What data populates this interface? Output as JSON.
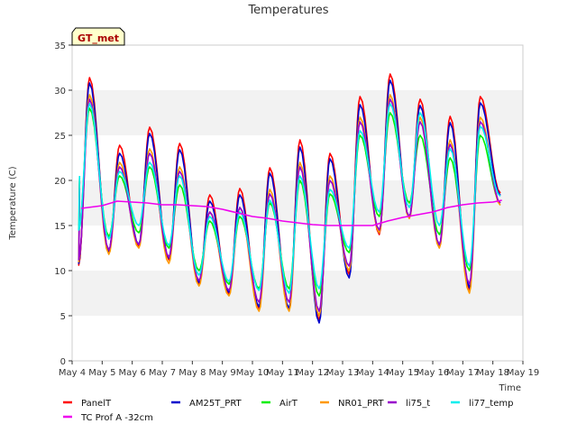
{
  "chart_data": {
    "type": "line",
    "title": "Temperatures",
    "xlabel": "Time",
    "ylabel": "Temperature (C)",
    "ylim": [
      0,
      35
    ],
    "yticks": [
      0,
      5,
      10,
      15,
      20,
      25,
      30,
      35
    ],
    "xlim": [
      4,
      19
    ],
    "xtick_values": [
      4,
      5,
      6,
      7,
      8,
      9,
      10,
      11,
      12,
      13,
      14,
      15,
      16,
      17,
      18,
      19
    ],
    "xtick_labels": [
      "May 4",
      "May 5",
      "May 6",
      "May 7",
      "May 8",
      "May 9",
      "May 10",
      "May 11",
      "May 12",
      "May 13",
      "May 14",
      "May 15",
      "May 16",
      "May 17",
      "May 18",
      "May 19"
    ],
    "grid": "horizontal alternating bands",
    "legend_position": "bottom",
    "site_badge": "GT_met",
    "series": [
      {
        "name": "PanelT",
        "color": "#ff0000",
        "max": [
          31.4,
          23.9,
          25.9,
          24.1,
          18.4,
          19.1,
          21.4,
          24.5,
          23.0,
          29.3,
          31.8,
          29.0,
          27.1,
          29.3
        ],
        "min": [
          10.6,
          12.0,
          12.7,
          11.2,
          8.5,
          7.4,
          5.8,
          5.6,
          4.5,
          9.6,
          14.0,
          15.8,
          12.6,
          7.9
        ]
      },
      {
        "name": "AM25T_PRT",
        "color": "#0000cc",
        "max": [
          30.8,
          23.0,
          25.2,
          23.4,
          17.7,
          18.4,
          20.8,
          23.7,
          22.4,
          28.4,
          31.1,
          28.3,
          26.4,
          28.6
        ],
        "min": [
          10.8,
          12.2,
          12.9,
          11.4,
          8.7,
          7.6,
          6.0,
          5.8,
          4.2,
          9.2,
          14.2,
          15.9,
          12.8,
          8.1
        ]
      },
      {
        "name": "AirT",
        "color": "#00ee00",
        "max": [
          28.0,
          20.5,
          21.5,
          19.5,
          15.5,
          16.0,
          17.5,
          20.0,
          18.5,
          25.0,
          27.5,
          25.0,
          22.5,
          25.0
        ],
        "min": [
          14.5,
          13.8,
          14.2,
          12.5,
          10.0,
          8.5,
          8.0,
          8.0,
          7.2,
          12.0,
          16.0,
          17.5,
          14.0,
          10.0
        ]
      },
      {
        "name": "NR01_PRT",
        "color": "#ff9900",
        "max": [
          29.5,
          22.0,
          23.5,
          21.5,
          16.5,
          17.0,
          19.0,
          22.0,
          20.5,
          27.0,
          29.5,
          27.0,
          24.5,
          27.0
        ],
        "min": [
          11.0,
          11.8,
          12.5,
          10.8,
          8.3,
          7.2,
          5.5,
          5.5,
          5.0,
          10.0,
          14.2,
          15.8,
          12.5,
          7.5
        ]
      },
      {
        "name": "li75_t",
        "color": "#9900cc",
        "max": [
          29.0,
          21.5,
          23.0,
          21.0,
          16.5,
          17.0,
          18.5,
          21.5,
          20.0,
          26.5,
          29.0,
          26.5,
          24.0,
          26.5
        ],
        "min": [
          11.2,
          12.3,
          12.9,
          11.5,
          8.9,
          7.8,
          6.5,
          6.5,
          5.5,
          10.5,
          14.5,
          16.0,
          12.9,
          8.5
        ]
      },
      {
        "name": "li77_temp",
        "color": "#00eeee",
        "max": [
          28.5,
          21.0,
          22.0,
          20.5,
          16.0,
          16.5,
          17.8,
          20.5,
          19.0,
          25.5,
          28.5,
          27.5,
          23.5,
          26.0
        ],
        "min": [
          14.5,
          13.5,
          15.0,
          12.8,
          9.5,
          8.8,
          7.8,
          7.5,
          8.0,
          12.5,
          16.5,
          17.0,
          15.0,
          10.5
        ]
      },
      {
        "name": "TC Prof A -32cm",
        "color": "#ee00ee",
        "x": [
          4.3,
          5.0,
          5.5,
          6.0,
          6.5,
          7.0,
          7.5,
          8.0,
          8.5,
          9.0,
          9.5,
          10.0,
          10.5,
          11.0,
          11.5,
          12.0,
          12.5,
          13.0,
          13.5,
          14.0,
          14.5,
          15.0,
          15.5,
          16.0,
          16.5,
          17.0,
          17.5,
          18.0,
          18.3
        ],
        "y": [
          16.9,
          17.2,
          17.7,
          17.6,
          17.5,
          17.3,
          17.3,
          17.2,
          17.1,
          16.8,
          16.4,
          16.0,
          15.8,
          15.5,
          15.3,
          15.1,
          15.0,
          15.0,
          15.0,
          15.0,
          15.5,
          15.9,
          16.2,
          16.5,
          17.0,
          17.3,
          17.5,
          17.6,
          17.8
        ]
      }
    ]
  }
}
